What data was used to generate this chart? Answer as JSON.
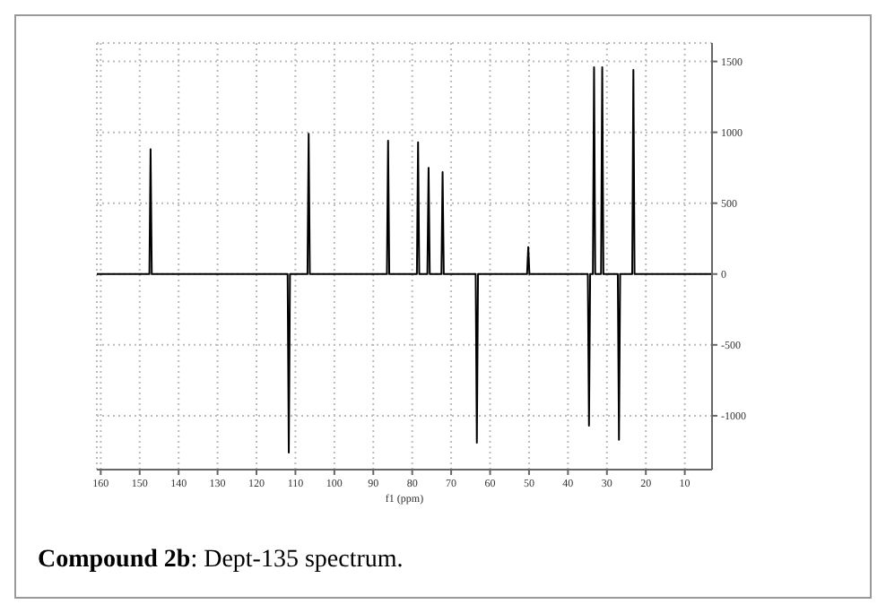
{
  "chart_data": {
    "type": "line",
    "title": "Compound 2b: Dept-135 spectrum.",
    "xlabel": "f1 (ppm)",
    "x": [
      161,
      147.5,
      147.2,
      146.9,
      112.0,
      111.7,
      111.4,
      106.9,
      106.6,
      106.3,
      86.5,
      86.2,
      85.9,
      78.8,
      78.5,
      78.2,
      76.1,
      75.8,
      75.5,
      72.5,
      72.2,
      71.9,
      63.7,
      63.4,
      63.1,
      50.5,
      50.2,
      49.9,
      34.9,
      34.6,
      34.3,
      33.6,
      33.3,
      33.0,
      31.5,
      31.2,
      30.9,
      27.2,
      26.9,
      26.6,
      23.5,
      23.2,
      22.9,
      3
    ],
    "series": [
      {
        "color": "#000000",
        "values": [
          0,
          0,
          880,
          0,
          0,
          -1260,
          0,
          0,
          990,
          0,
          0,
          940,
          0,
          0,
          930,
          0,
          0,
          750,
          0,
          0,
          720,
          0,
          0,
          -1190,
          0,
          0,
          190,
          0,
          0,
          -1070,
          0,
          0,
          1460,
          0,
          0,
          1460,
          0,
          0,
          -1170,
          0,
          0,
          1440,
          0,
          0
        ]
      }
    ],
    "xlim": [
      161,
      3
    ],
    "xticks": [
      160,
      150,
      140,
      130,
      120,
      110,
      100,
      90,
      80,
      70,
      60,
      50,
      40,
      30,
      20,
      10
    ],
    "ylim": [
      -1380,
      1630
    ],
    "yticks": [
      -1000,
      -500,
      0,
      500,
      1000,
      1500
    ],
    "grid": true,
    "marker": "none",
    "line_style": "solid"
  }
}
